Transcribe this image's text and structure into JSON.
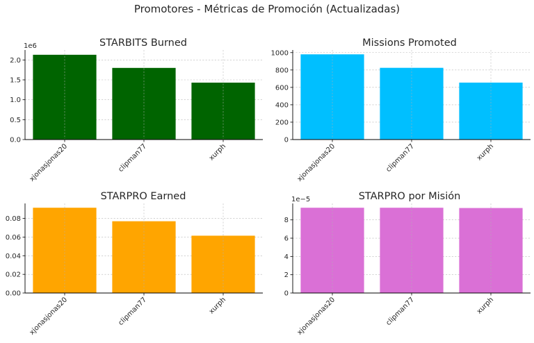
{
  "suptitle": "Promotores - Métricas de Promoción (Actualizadas)",
  "chart_data": [
    {
      "type": "bar",
      "title": "STARBITS Burned",
      "categories": [
        "xjonasjonas20",
        "clipman77",
        "xurph"
      ],
      "values": [
        2130000,
        1800000,
        1430000
      ],
      "ylim": [
        0,
        2250000
      ],
      "yticks": [
        0,
        500000,
        1000000,
        1500000,
        2000000
      ],
      "ytick_labels": [
        "0.0",
        "0.5",
        "1.0",
        "1.5",
        "2.0"
      ],
      "offset_label": "1e6",
      "color": "#006400",
      "grid": true,
      "xlabel": "",
      "ylabel": ""
    },
    {
      "type": "bar",
      "title": "Missions Promoted",
      "categories": [
        "xjonasjonas20",
        "clipman77",
        "xurph"
      ],
      "values": [
        980,
        825,
        655
      ],
      "ylim": [
        0,
        1030
      ],
      "yticks": [
        0,
        200,
        400,
        600,
        800,
        1000
      ],
      "ytick_labels": [
        "0",
        "200",
        "400",
        "600",
        "800",
        "1000"
      ],
      "offset_label": "",
      "color": "#00bfff",
      "grid": true,
      "xlabel": "",
      "ylabel": ""
    },
    {
      "type": "bar",
      "title": "STARPRO Earned",
      "categories": [
        "xjonasjonas20",
        "clipman77",
        "xurph"
      ],
      "values": [
        0.0915,
        0.077,
        0.0615
      ],
      "ylim": [
        0,
        0.0961
      ],
      "yticks": [
        0,
        0.02,
        0.04,
        0.06,
        0.08
      ],
      "ytick_labels": [
        "0.00",
        "0.02",
        "0.04",
        "0.06",
        "0.08"
      ],
      "offset_label": "",
      "color": "#ffa500",
      "grid": true,
      "xlabel": "",
      "ylabel": ""
    },
    {
      "type": "bar",
      "title": "STARPRO por Misión",
      "categories": [
        "xjonasjonas20",
        "clipman77",
        "xurph"
      ],
      "values": [
        9.33e-05,
        9.33e-05,
        9.3e-05
      ],
      "ylim": [
        0,
        9.8e-05
      ],
      "yticks": [
        0,
        2e-05,
        4e-05,
        6e-05,
        8e-05
      ],
      "ytick_labels": [
        "0",
        "2",
        "4",
        "6",
        "8"
      ],
      "offset_label": "1e−5",
      "color": "#da70d6",
      "grid": true,
      "xlabel": "",
      "ylabel": ""
    }
  ]
}
